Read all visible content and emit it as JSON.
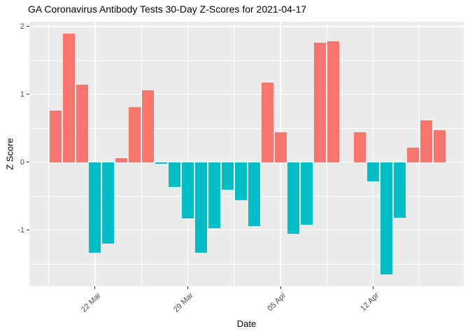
{
  "title": "GA Coronavirus Antibody Tests 30-Day Z-Scores for 2021-04-17",
  "chart_data": {
    "type": "bar",
    "title": "GA Coronavirus Antibody Tests 30-Day Z-Scores for 2021-04-17",
    "xlabel": "Date",
    "ylabel": "Z Score",
    "x": [
      "2021-03-19",
      "2021-03-20",
      "2021-03-21",
      "2021-03-22",
      "2021-03-23",
      "2021-03-24",
      "2021-03-25",
      "2021-03-26",
      "2021-03-27",
      "2021-03-28",
      "2021-03-29",
      "2021-03-30",
      "2021-03-31",
      "2021-04-01",
      "2021-04-02",
      "2021-04-03",
      "2021-04-04",
      "2021-04-05",
      "2021-04-06",
      "2021-04-07",
      "2021-04-08",
      "2021-04-09",
      "2021-04-10",
      "2021-04-11",
      "2021-04-12",
      "2021-04-13",
      "2021-04-14",
      "2021-04-15",
      "2021-04-16",
      "2021-04-17"
    ],
    "values": [
      0.76,
      1.89,
      1.14,
      -1.33,
      -1.2,
      0.06,
      0.81,
      1.06,
      -0.02,
      -0.37,
      -0.83,
      -1.33,
      -0.97,
      -0.41,
      -0.56,
      -0.94,
      1.17,
      0.44,
      -1.06,
      -0.92,
      1.76,
      1.78,
      0.0,
      0.44,
      -0.28,
      -1.65,
      -0.82,
      0.21,
      0.62,
      0.47
    ],
    "ylim": [
      -1.83,
      2.07
    ],
    "yticks": [
      2,
      1,
      0,
      -1
    ],
    "ytick_labels": [
      "2",
      "1",
      "0",
      "-1"
    ],
    "yticks_minor": [
      1.5,
      0.5,
      -0.5,
      -1.5
    ],
    "xticks": [
      {
        "index": 3,
        "label": "22 Mar"
      },
      {
        "index": 10,
        "label": "29 Mar"
      },
      {
        "index": 17,
        "label": "05 Apr"
      },
      {
        "index": 24,
        "label": "12 Apr"
      }
    ],
    "xticks_minor_index": [
      -0.5,
      6.5,
      13.5,
      20.5,
      27.5
    ],
    "grid": true,
    "legend_position": "none",
    "colors": {
      "positive": "#F8766D",
      "negative": "#00BFC4",
      "panel_background": "#EBEBEB",
      "gridline": "#FFFFFF",
      "axis_text": "#4D4D4D",
      "title_text": "#000000",
      "tick_mark": "#333333"
    }
  }
}
